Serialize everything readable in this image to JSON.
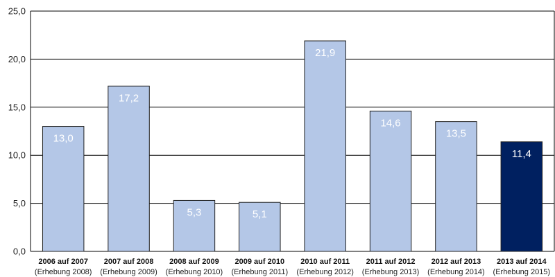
{
  "chart_data": {
    "type": "bar",
    "categories": [
      "2006 auf 2007",
      "2007 auf 2008",
      "2008 auf 2009",
      "2009 auf 2010",
      "2010 auf 2011",
      "2011 auf 2012",
      "2012 auf 2013",
      "2013 auf 2014"
    ],
    "subcategories": [
      "(Erhebung 2008)",
      "(Erhebung 2009)",
      "(Erhebung 2010)",
      "(Erhebung 2011)",
      "(Erhebung 2012)",
      "(Erhebung 2013)",
      "(Erhebung 2014)",
      "(Erhebung 2015)"
    ],
    "values": [
      13.0,
      17.2,
      5.3,
      5.1,
      21.9,
      14.6,
      13.5,
      11.4
    ],
    "value_labels": [
      "13,0",
      "17,2",
      "5,3",
      "5,1",
      "21,9",
      "14,6",
      "13,5",
      "11,4"
    ],
    "yticks": [
      0,
      5,
      10,
      15,
      20,
      25
    ],
    "ytick_labels": [
      "0,0",
      "5,0",
      "10,0",
      "15,0",
      "20,0",
      "25,0"
    ],
    "ylim": [
      0,
      25
    ],
    "grid": true,
    "legend": false,
    "colors": {
      "bar": "#b4c7e7",
      "highlight": "#002060",
      "border": "#1f1f1f",
      "grid": "#000000"
    },
    "highlight_index": 7
  }
}
